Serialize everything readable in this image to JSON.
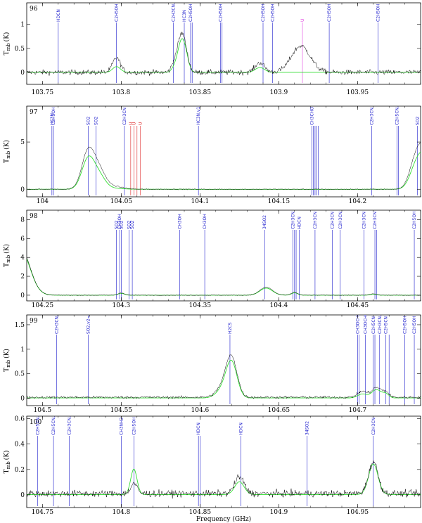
{
  "chart_data": {
    "type": "line",
    "xlabel": "Frequency (GHz)",
    "ylabel": "T",
    "ylabel_sub": "mb",
    "ylabel_unit": "(K)",
    "colors": {
      "observed": "#000000",
      "model": "#33dd33",
      "line_marker": "#1a1acc",
      "line_marker_red": "#dd2222",
      "line_marker_magenta": "#e040e0"
    },
    "panels": [
      {
        "number": "96",
        "xlim": [
          103.74,
          103.99
        ],
        "ylim": [
          -0.25,
          1.45
        ],
        "xticks": [
          103.75,
          103.8,
          103.85,
          103.9,
          103.95
        ],
        "xtick_labels": [
          "103.75",
          "103.8",
          "103.85",
          "103.9",
          "103.95"
        ],
        "yticks": [
          0,
          0.5,
          1
        ],
        "ytick_labels": [
          "0",
          "0.5",
          "1"
        ],
        "baseline": 0.0,
        "noise": 0.05,
        "peaks": [
          {
            "x": 103.797,
            "obs": 0.3,
            "model": 0.12,
            "w": 0.0025
          },
          {
            "x": 103.834,
            "obs": 0.2,
            "model": 0.1,
            "w": 0.002
          },
          {
            "x": 103.838,
            "obs": 0.68,
            "model": 0.58,
            "w": 0.0022
          },
          {
            "x": 103.841,
            "obs": 0.3,
            "model": 0.28,
            "w": 0.002
          },
          {
            "x": 103.888,
            "obs": 0.2,
            "model": 0.1,
            "w": 0.003
          },
          {
            "x": 103.914,
            "obs": 0.55,
            "model": 0.0,
            "w": 0.006
          }
        ],
        "markers": [
          {
            "x": 103.76,
            "label": "HDCN",
            "color": "blue"
          },
          {
            "x": 103.797,
            "label": "C2H5OH",
            "color": "blue"
          },
          {
            "x": 103.833,
            "label": "C2H3CN,v11=1",
            "color": "blue"
          },
          {
            "x": 103.84,
            "label": "HC3N",
            "color": "blue"
          },
          {
            "x": 103.844,
            "label": "C2H5OH",
            "color": "blue"
          },
          {
            "x": 103.845,
            "label": "",
            "color": "blue"
          },
          {
            "x": 103.863,
            "label": "C2H5OH",
            "color": "blue"
          },
          {
            "x": 103.864,
            "label": "",
            "color": "blue"
          },
          {
            "x": 103.89,
            "label": "C2H5OH",
            "color": "blue"
          },
          {
            "x": 103.896,
            "label": "C2H5OH",
            "color": "blue"
          },
          {
            "x": 103.915,
            "label": "U",
            "color": "magenta"
          },
          {
            "x": 103.932,
            "label": "C2H5OH",
            "color": "blue"
          },
          {
            "x": 103.963,
            "label": "C2H5OH",
            "color": "blue"
          }
        ]
      },
      {
        "number": "97",
        "xlim": [
          103.99,
          104.24
        ],
        "ylim": [
          -0.8,
          8.8
        ],
        "xticks": [
          104.0,
          104.05,
          104.1,
          104.15,
          104.2
        ],
        "xtick_labels": [
          "104",
          "104.05",
          "104.1",
          "104.15",
          "104.2"
        ],
        "yticks": [
          0,
          5
        ],
        "ytick_labels": [
          "0",
          "5"
        ],
        "baseline": 0.0,
        "noise": 0.05,
        "peaks": [
          {
            "x": 104.029,
            "obs": 4.0,
            "model": 3.2,
            "w": 0.004
          },
          {
            "x": 104.036,
            "obs": 1.8,
            "model": 1.3,
            "w": 0.004
          },
          {
            "x": 104.045,
            "obs": 0.3,
            "model": 0.1,
            "w": 0.006
          },
          {
            "x": 104.237,
            "obs": 3.0,
            "model": 2.2,
            "w": 0.004
          },
          {
            "x": 104.243,
            "obs": 3.5,
            "model": 3.0,
            "w": 0.004
          }
        ],
        "markers": [
          {
            "x": 104.006,
            "label": "HC3N",
            "color": "blue"
          },
          {
            "x": 104.007,
            "label": "C2H5OH",
            "color": "blue"
          },
          {
            "x": 104.029,
            "label": "SO2",
            "color": "blue"
          },
          {
            "x": 104.034,
            "label": "SO2",
            "color": "blue"
          },
          {
            "x": 104.052,
            "label": "C2H3CN",
            "color": "blue"
          },
          {
            "x": 104.056,
            "label": "U",
            "color": "red"
          },
          {
            "x": 104.058,
            "label": "U",
            "color": "red"
          },
          {
            "x": 104.06,
            "label": "",
            "color": "red"
          },
          {
            "x": 104.062,
            "label": "U",
            "color": "red"
          },
          {
            "x": 104.099,
            "label": "HC3N,v11=1",
            "color": "blue"
          },
          {
            "x": 104.171,
            "label": "CH3CHO",
            "color": "blue"
          },
          {
            "x": 104.172,
            "label": "",
            "color": "blue"
          },
          {
            "x": 104.173,
            "label": "",
            "color": "blue"
          },
          {
            "x": 104.174,
            "label": "",
            "color": "blue"
          },
          {
            "x": 104.175,
            "label": "",
            "color": "blue"
          },
          {
            "x": 104.209,
            "label": "C2H3CN",
            "color": "blue"
          },
          {
            "x": 104.225,
            "label": "C2H5CN,v20=1",
            "color": "blue"
          },
          {
            "x": 104.226,
            "label": "",
            "color": "blue"
          },
          {
            "x": 104.238,
            "label": "SO2",
            "color": "blue"
          }
        ]
      },
      {
        "number": "98",
        "xlim": [
          104.24,
          104.49
        ],
        "ylim": [
          -0.6,
          9.0
        ],
        "xticks": [
          104.25,
          104.3,
          104.35,
          104.4,
          104.45
        ],
        "xtick_labels": [
          "104.25",
          "104.3",
          "104.35",
          "104.4",
          "104.45"
        ],
        "yticks": [
          0,
          2,
          4,
          6,
          8
        ],
        "ytick_labels": [
          "0",
          "2",
          "4",
          "6",
          "8"
        ],
        "baseline": 0.0,
        "noise": 0.04,
        "peaks": [
          {
            "x": 104.236,
            "obs": 5.0,
            "model": 4.8,
            "w": 0.006
          },
          {
            "x": 104.3,
            "obs": 0.25,
            "model": 0.2,
            "w": 0.002
          },
          {
            "x": 104.392,
            "obs": 0.85,
            "model": 0.75,
            "w": 0.004
          },
          {
            "x": 104.41,
            "obs": 0.3,
            "model": 0.25,
            "w": 0.002
          },
          {
            "x": 104.46,
            "obs": 0.15,
            "model": 0.1,
            "w": 0.002
          }
        ],
        "markers": [
          {
            "x": 104.297,
            "label": "SO2",
            "color": "blue"
          },
          {
            "x": 104.299,
            "label": "CH3OH",
            "color": "blue"
          },
          {
            "x": 104.3,
            "label": "SO2",
            "color": "blue"
          },
          {
            "x": 104.305,
            "label": "SO2",
            "color": "blue"
          },
          {
            "x": 104.307,
            "label": "SO2",
            "color": "blue"
          },
          {
            "x": 104.337,
            "label": "CH3OH",
            "color": "blue"
          },
          {
            "x": 104.353,
            "label": "CH3OH",
            "color": "blue"
          },
          {
            "x": 104.391,
            "label": "34SO2",
            "color": "blue"
          },
          {
            "x": 104.409,
            "label": "C2H3CN",
            "color": "blue"
          },
          {
            "x": 104.41,
            "label": "",
            "color": "blue"
          },
          {
            "x": 104.411,
            "label": "",
            "color": "blue"
          },
          {
            "x": 104.413,
            "label": "HDCN",
            "color": "blue"
          },
          {
            "x": 104.423,
            "label": "C2H3CN",
            "color": "blue"
          },
          {
            "x": 104.434,
            "label": "C2H3CN",
            "color": "blue"
          },
          {
            "x": 104.439,
            "label": "C2H3CN",
            "color": "blue"
          },
          {
            "x": 104.454,
            "label": "C2H3CN",
            "color": "blue"
          },
          {
            "x": 104.461,
            "label": "C2H3CN",
            "color": "blue"
          },
          {
            "x": 104.462,
            "label": "",
            "color": "blue"
          },
          {
            "x": 104.486,
            "label": "C2H5OH",
            "color": "blue"
          }
        ]
      },
      {
        "number": "99",
        "xlim": [
          104.49,
          104.74
        ],
        "ylim": [
          -0.15,
          1.7
        ],
        "xticks": [
          104.5,
          104.55,
          104.6,
          104.65,
          104.7
        ],
        "xtick_labels": [
          "104.5",
          "104.55",
          "104.6",
          "104.65",
          "104.7"
        ],
        "yticks": [
          0,
          0.5,
          1,
          1.5
        ],
        "ytick_labels": [
          "0",
          "0.5",
          "1",
          "1.5"
        ],
        "baseline": 0.02,
        "noise": 0.025,
        "peaks": [
          {
            "x": 104.614,
            "obs": 0.18,
            "model": 0.15,
            "w": 0.004
          },
          {
            "x": 104.62,
            "obs": 0.8,
            "model": 0.72,
            "w": 0.0035
          },
          {
            "x": 104.703,
            "obs": 0.12,
            "model": 0.08,
            "w": 0.003
          },
          {
            "x": 104.712,
            "obs": 0.2,
            "model": 0.17,
            "w": 0.003
          },
          {
            "x": 104.718,
            "obs": 0.1,
            "model": 0.08,
            "w": 0.002
          }
        ],
        "markers": [
          {
            "x": 104.509,
            "label": "C2H3CN,v11=1",
            "color": "blue"
          },
          {
            "x": 104.529,
            "label": "SO2,v2=1",
            "color": "blue"
          },
          {
            "x": 104.619,
            "label": "H2CS",
            "color": "blue"
          },
          {
            "x": 104.7,
            "label": "CH3OCHO",
            "color": "blue"
          },
          {
            "x": 104.701,
            "label": "",
            "color": "blue"
          },
          {
            "x": 104.705,
            "label": "CH3OCHO",
            "color": "blue"
          },
          {
            "x": 104.71,
            "label": "C2H5CN",
            "color": "blue"
          },
          {
            "x": 104.711,
            "label": "",
            "color": "blue"
          },
          {
            "x": 104.714,
            "label": "C2H3CN,v",
            "color": "blue"
          },
          {
            "x": 104.718,
            "label": "C2H5CN",
            "color": "blue"
          },
          {
            "x": 104.72,
            "label": "",
            "color": "blue"
          },
          {
            "x": 104.73,
            "label": "C2H5OH",
            "color": "blue"
          },
          {
            "x": 104.736,
            "label": "C2H5OH",
            "color": "blue"
          }
        ]
      },
      {
        "number": "100",
        "xlim": [
          104.74,
          104.99
        ],
        "ylim": [
          -0.1,
          0.62
        ],
        "xticks": [
          104.75,
          104.8,
          104.85,
          104.9,
          104.95
        ],
        "xtick_labels": [
          "104.75",
          "104.8",
          "104.85",
          "104.9",
          "104.95"
        ],
        "yticks": [
          0,
          0.2,
          0.4,
          0.6
        ],
        "ytick_labels": [
          "0",
          "0.2",
          "0.4",
          "0.6"
        ],
        "baseline": 0.01,
        "noise": 0.025,
        "peaks": [
          {
            "x": 104.808,
            "obs": 0.08,
            "model": 0.2,
            "w": 0.002
          },
          {
            "x": 104.875,
            "obs": 0.13,
            "model": 0.1,
            "w": 0.003
          },
          {
            "x": 104.96,
            "obs": 0.25,
            "model": 0.24,
            "w": 0.003
          }
        ],
        "markers": [
          {
            "x": 104.747,
            "label": "C2H5CN,v20=1",
            "color": "blue"
          },
          {
            "x": 104.757,
            "label": "C2H5CN,v20=1",
            "color": "blue"
          },
          {
            "x": 104.767,
            "label": "C2H3CN,v11=1",
            "color": "blue"
          },
          {
            "x": 104.8,
            "label": "CH3NH2",
            "color": "blue"
          },
          {
            "x": 104.808,
            "label": "C2H5OH",
            "color": "blue"
          },
          {
            "x": 104.849,
            "label": "HDCN",
            "color": "blue"
          },
          {
            "x": 104.85,
            "label": "",
            "color": "blue"
          },
          {
            "x": 104.876,
            "label": "HDCN",
            "color": "blue"
          },
          {
            "x": 104.918,
            "label": "34SO2",
            "color": "blue"
          },
          {
            "x": 104.96,
            "label": "C2H3CN",
            "color": "blue"
          }
        ]
      }
    ]
  }
}
